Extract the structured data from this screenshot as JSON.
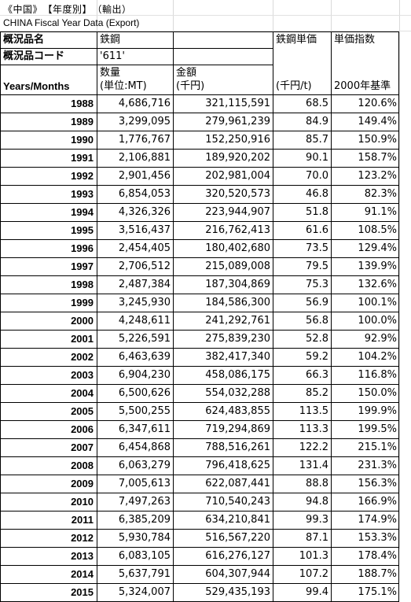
{
  "header": {
    "title": "《中国》　【年度別】　（輸出）",
    "subtitle": "CHINA Fiscal Year Data  (Export)"
  },
  "table": {
    "labels": {
      "item_name_label": "概況品名",
      "item_name_value": "鉄鋼",
      "unit_price_label": "鉄鋼単価",
      "price_index_label": "単価指数",
      "item_code_label": "概況品コード",
      "item_code_value": "'611'",
      "quantity_label": "数量",
      "amount_label": "金額",
      "years_label": "Years/Months",
      "quantity_unit": "(単位:MT)",
      "amount_unit": "(千円)",
      "unit_price_unit": "(千円/t)",
      "index_base": "2000年基準"
    },
    "rows": [
      {
        "year": "1988",
        "quantity": "4,686,716",
        "amount": "321,115,591",
        "unit_price": "68.5",
        "index": "120.6%"
      },
      {
        "year": "1989",
        "quantity": "3,299,095",
        "amount": "279,961,239",
        "unit_price": "84.9",
        "index": "149.4%"
      },
      {
        "year": "1990",
        "quantity": "1,776,767",
        "amount": "152,250,916",
        "unit_price": "85.7",
        "index": "150.9%"
      },
      {
        "year": "1991",
        "quantity": "2,106,881",
        "amount": "189,920,202",
        "unit_price": "90.1",
        "index": "158.7%"
      },
      {
        "year": "1992",
        "quantity": "2,901,456",
        "amount": "202,981,004",
        "unit_price": "70.0",
        "index": "123.2%"
      },
      {
        "year": "1993",
        "quantity": "6,854,053",
        "amount": "320,520,573",
        "unit_price": "46.8",
        "index": "82.3%"
      },
      {
        "year": "1994",
        "quantity": "4,326,326",
        "amount": "223,944,907",
        "unit_price": "51.8",
        "index": "91.1%"
      },
      {
        "year": "1995",
        "quantity": "3,516,437",
        "amount": "216,762,413",
        "unit_price": "61.6",
        "index": "108.5%"
      },
      {
        "year": "1996",
        "quantity": "2,454,405",
        "amount": "180,402,680",
        "unit_price": "73.5",
        "index": "129.4%"
      },
      {
        "year": "1997",
        "quantity": "2,706,512",
        "amount": "215,089,008",
        "unit_price": "79.5",
        "index": "139.9%"
      },
      {
        "year": "1998",
        "quantity": "2,487,384",
        "amount": "187,304,869",
        "unit_price": "75.3",
        "index": "132.6%"
      },
      {
        "year": "1999",
        "quantity": "3,245,930",
        "amount": "184,586,300",
        "unit_price": "56.9",
        "index": "100.1%"
      },
      {
        "year": "2000",
        "quantity": "4,248,611",
        "amount": "241,292,761",
        "unit_price": "56.8",
        "index": "100.0%"
      },
      {
        "year": "2001",
        "quantity": "5,226,591",
        "amount": "275,839,230",
        "unit_price": "52.8",
        "index": "92.9%"
      },
      {
        "year": "2002",
        "quantity": "6,463,639",
        "amount": "382,417,340",
        "unit_price": "59.2",
        "index": "104.2%"
      },
      {
        "year": "2003",
        "quantity": "6,904,230",
        "amount": "458,086,175",
        "unit_price": "66.3",
        "index": "116.8%"
      },
      {
        "year": "2004",
        "quantity": "6,500,626",
        "amount": "554,032,288",
        "unit_price": "85.2",
        "index": "150.0%"
      },
      {
        "year": "2005",
        "quantity": "5,500,255",
        "amount": "624,483,855",
        "unit_price": "113.5",
        "index": "199.9%"
      },
      {
        "year": "2006",
        "quantity": "6,347,611",
        "amount": "719,294,869",
        "unit_price": "113.3",
        "index": "199.5%"
      },
      {
        "year": "2007",
        "quantity": "6,454,868",
        "amount": "788,516,261",
        "unit_price": "122.2",
        "index": "215.1%"
      },
      {
        "year": "2008",
        "quantity": "6,063,279",
        "amount": "796,418,625",
        "unit_price": "131.4",
        "index": "231.3%"
      },
      {
        "year": "2009",
        "quantity": "7,005,613",
        "amount": "622,087,441",
        "unit_price": "88.8",
        "index": "156.3%"
      },
      {
        "year": "2010",
        "quantity": "7,497,263",
        "amount": "710,540,243",
        "unit_price": "94.8",
        "index": "166.9%"
      },
      {
        "year": "2011",
        "quantity": "6,385,209",
        "amount": "634,210,841",
        "unit_price": "99.3",
        "index": "174.9%"
      },
      {
        "year": "2012",
        "quantity": "5,930,784",
        "amount": "516,567,220",
        "unit_price": "87.1",
        "index": "153.3%"
      },
      {
        "year": "2013",
        "quantity": "6,083,105",
        "amount": "616,276,127",
        "unit_price": "101.3",
        "index": "178.4%"
      },
      {
        "year": "2014",
        "quantity": "5,637,791",
        "amount": "604,307,944",
        "unit_price": "107.2",
        "index": "188.7%"
      },
      {
        "year": "2015",
        "quantity": "5,324,007",
        "amount": "529,435,193",
        "unit_price": "99.4",
        "index": "175.1%"
      }
    ]
  }
}
